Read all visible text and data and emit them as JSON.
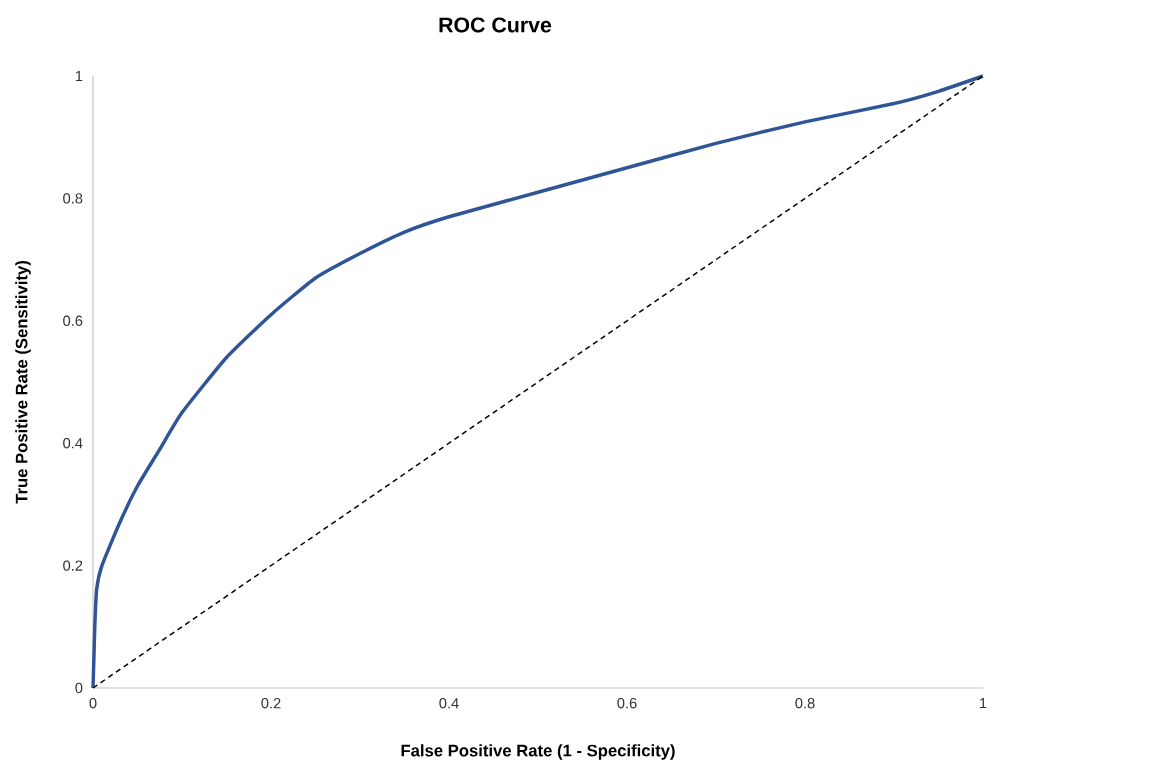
{
  "chart_data": {
    "type": "line",
    "title": "ROC Curve",
    "xlabel": "False Positive Rate (1 - Specificity)",
    "ylabel": "True Positive Rate (Sensitivity)",
    "xlim": [
      0,
      1
    ],
    "ylim": [
      0,
      1
    ],
    "xticks": [
      0,
      0.2,
      0.4,
      0.6,
      0.8,
      1
    ],
    "yticks": [
      0,
      0.2,
      0.4,
      0.6,
      0.8,
      1
    ],
    "marker": "none",
    "series": [
      {
        "color": "#2f5597",
        "line_style": "solid",
        "x": [
          0,
          0.001,
          0.002,
          0.004,
          0.01,
          0.03,
          0.05,
          0.075,
          0.1,
          0.15,
          0.2,
          0.25,
          0.3,
          0.35,
          0.4,
          0.5,
          0.6,
          0.7,
          0.8,
          0.9,
          0.95,
          1
        ],
        "values": [
          0,
          0.05,
          0.1,
          0.16,
          0.2,
          0.27,
          0.33,
          0.39,
          0.45,
          0.54,
          0.61,
          0.67,
          0.71,
          0.745,
          0.77,
          0.81,
          0.85,
          0.89,
          0.925,
          0.955,
          0.975,
          1
        ]
      },
      {
        "color": "#000000",
        "line_style": "dashed",
        "x": [
          0,
          1
        ],
        "values": [
          0,
          1
        ]
      }
    ]
  }
}
